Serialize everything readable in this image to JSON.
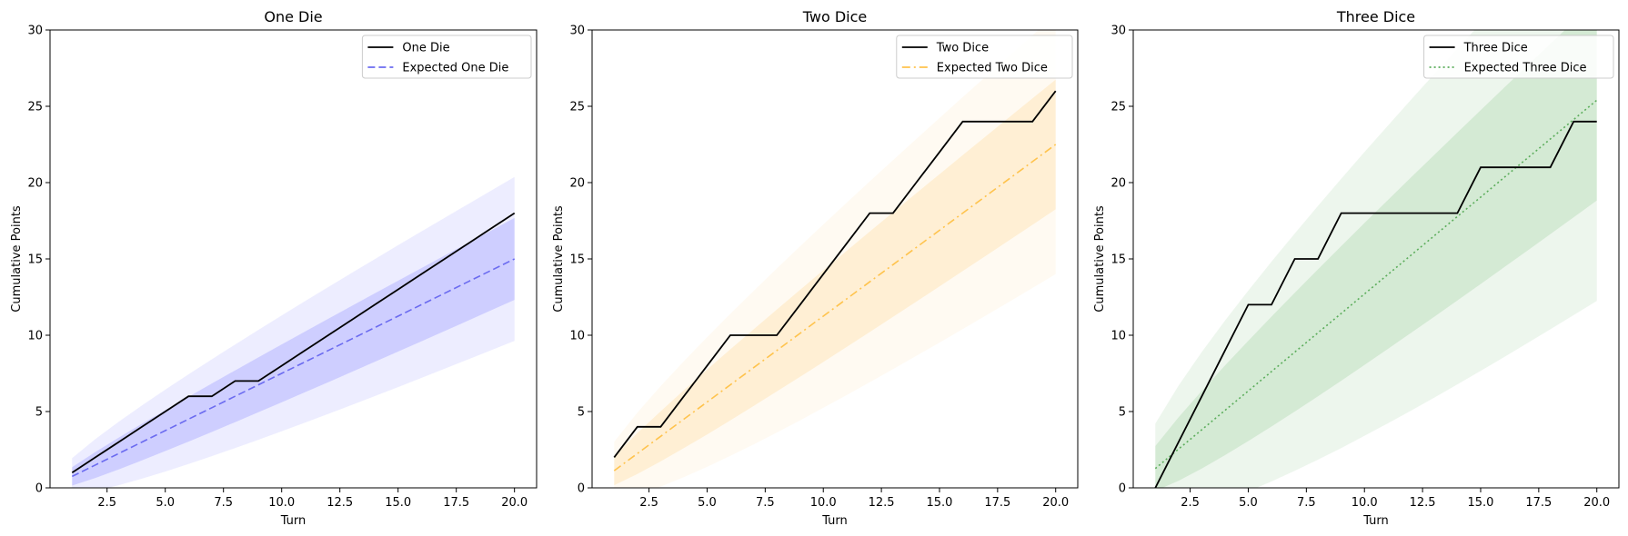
{
  "chart_data": [
    {
      "type": "line",
      "title": "One Die",
      "xlabel": "Turn",
      "ylabel": "Cumulative Points",
      "xlim": [
        0.05,
        20.95
      ],
      "ylim": [
        0,
        30
      ],
      "xticks": [
        2.5,
        5.0,
        7.5,
        10.0,
        12.5,
        15.0,
        17.5,
        20.0
      ],
      "xtick_labels": [
        "2.5",
        "5.0",
        "7.5",
        "10.0",
        "12.5",
        "15.0",
        "17.5",
        "20.0"
      ],
      "yticks": [
        0,
        5,
        10,
        15,
        20,
        25,
        30
      ],
      "ytick_labels": [
        "0",
        "5",
        "10",
        "15",
        "20",
        "25",
        "30"
      ],
      "legend_position": "top-right",
      "grid": false,
      "x": [
        1,
        2,
        3,
        4,
        5,
        6,
        7,
        8,
        9,
        10,
        11,
        12,
        13,
        14,
        15,
        16,
        17,
        18,
        19,
        20
      ],
      "actual": {
        "name": "One Die",
        "color": "#000000",
        "style": "solid",
        "values": [
          1,
          2,
          3,
          4,
          5,
          6,
          6,
          7,
          7,
          8,
          9,
          10,
          11,
          12,
          13,
          14,
          15,
          16,
          17,
          18
        ]
      },
      "expected": {
        "name": "Expected One Die",
        "color": "#6b6bf0",
        "style": "dashed",
        "per_turn": 0.75
      },
      "bands": [
        {
          "label": "outer",
          "sd_per_sqrt_turn": 0.6,
          "multiplier": 2,
          "color": "#0000ff",
          "opacity": 0.07
        },
        {
          "label": "inner",
          "sd_per_sqrt_turn": 0.6,
          "multiplier": 1,
          "color": "#0000ff",
          "opacity": 0.13
        }
      ]
    },
    {
      "type": "line",
      "title": "Two Dice",
      "xlabel": "Turn",
      "ylabel": "Cumulative Points",
      "xlim": [
        0.05,
        20.95
      ],
      "ylim": [
        0,
        30
      ],
      "xticks": [
        2.5,
        5.0,
        7.5,
        10.0,
        12.5,
        15.0,
        17.5,
        20.0
      ],
      "xtick_labels": [
        "2.5",
        "5.0",
        "7.5",
        "10.0",
        "12.5",
        "15.0",
        "17.5",
        "20.0"
      ],
      "yticks": [
        0,
        5,
        10,
        15,
        20,
        25,
        30
      ],
      "ytick_labels": [
        "0",
        "5",
        "10",
        "15",
        "20",
        "25",
        "30"
      ],
      "legend_position": "top-right",
      "grid": false,
      "x": [
        1,
        2,
        3,
        4,
        5,
        6,
        7,
        8,
        9,
        10,
        11,
        12,
        13,
        14,
        15,
        16,
        17,
        18,
        19,
        20
      ],
      "actual": {
        "name": "Two Dice",
        "color": "#000000",
        "style": "solid",
        "values": [
          2,
          4,
          4,
          6,
          8,
          10,
          10,
          10,
          12,
          14,
          16,
          18,
          18,
          20,
          22,
          24,
          24,
          24,
          24,
          26
        ]
      },
      "expected": {
        "name": "Expected Two Dice",
        "color": "#ffc34d",
        "style": "dashdot",
        "per_turn": 1.125
      },
      "bands": [
        {
          "label": "outer",
          "sd_per_sqrt_turn": 0.95,
          "multiplier": 2,
          "color": "#ffa500",
          "opacity": 0.05
        },
        {
          "label": "inner",
          "sd_per_sqrt_turn": 0.95,
          "multiplier": 1,
          "color": "#ffa500",
          "opacity": 0.12
        }
      ]
    },
    {
      "type": "line",
      "title": "Three Dice",
      "xlabel": "Turn",
      "ylabel": "Cumulative Points",
      "xlim": [
        0.05,
        20.95
      ],
      "ylim": [
        0,
        30
      ],
      "xticks": [
        2.5,
        5.0,
        7.5,
        10.0,
        12.5,
        15.0,
        17.5,
        20.0
      ],
      "xtick_labels": [
        "2.5",
        "5.0",
        "7.5",
        "10.0",
        "12.5",
        "15.0",
        "17.5",
        "20.0"
      ],
      "yticks": [
        0,
        5,
        10,
        15,
        20,
        25,
        30
      ],
      "ytick_labels": [
        "0",
        "5",
        "10",
        "15",
        "20",
        "25",
        "30"
      ],
      "legend_position": "top-right",
      "grid": false,
      "x": [
        1,
        2,
        3,
        4,
        5,
        6,
        7,
        8,
        9,
        10,
        11,
        12,
        13,
        14,
        15,
        16,
        17,
        18,
        19,
        20
      ],
      "actual": {
        "name": "Three Dice",
        "color": "#000000",
        "style": "solid",
        "values": [
          0,
          3,
          6,
          9,
          12,
          12,
          15,
          15,
          18,
          18,
          18,
          18,
          18,
          18,
          21,
          21,
          21,
          21,
          24,
          24
        ]
      },
      "expected": {
        "name": "Expected Three Dice",
        "color": "#5cad5c",
        "style": "dotted",
        "per_turn": 1.27
      },
      "bands": [
        {
          "label": "outer",
          "sd_per_sqrt_turn": 1.47,
          "multiplier": 2,
          "color": "#008000",
          "opacity": 0.07
        },
        {
          "label": "inner",
          "sd_per_sqrt_turn": 1.47,
          "multiplier": 1,
          "color": "#008000",
          "opacity": 0.1
        }
      ]
    }
  ]
}
